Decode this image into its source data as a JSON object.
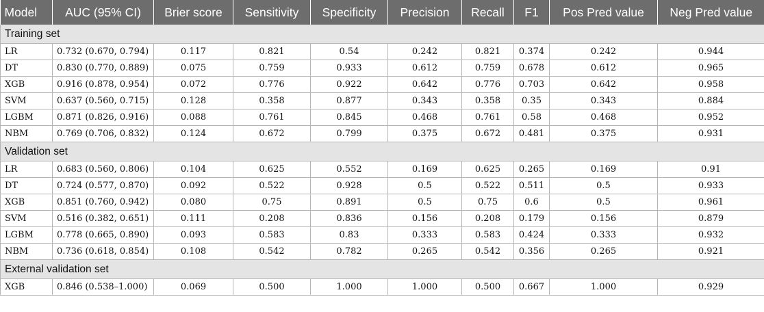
{
  "columns": [
    "Model",
    "AUC (95% CI)",
    "Brier score",
    "Sensitivity",
    "Specificity",
    "Precision",
    "Recall",
    "F1",
    "Pos Pred value",
    "Neg Pred value"
  ],
  "sections": [
    {
      "title": "Training set",
      "rows": [
        [
          "LR",
          "0.732 (0.670, 0.794)",
          "0.117",
          "0.821",
          "0.54",
          "0.242",
          "0.821",
          "0.374",
          "0.242",
          "0.944"
        ],
        [
          "DT",
          "0.830 (0.770, 0.889)",
          "0.075",
          "0.759",
          "0.933",
          "0.612",
          "0.759",
          "0.678",
          "0.612",
          "0.965"
        ],
        [
          "XGB",
          "0.916 (0.878, 0.954)",
          "0.072",
          "0.776",
          "0.922",
          "0.642",
          "0.776",
          "0.703",
          "0.642",
          "0.958"
        ],
        [
          "SVM",
          "0.637 (0.560, 0.715)",
          "0.128",
          "0.358",
          "0.877",
          "0.343",
          "0.358",
          "0.35",
          "0.343",
          "0.884"
        ],
        [
          "LGBM",
          "0.871 (0.826, 0.916)",
          "0.088",
          "0.761",
          "0.845",
          "0.468",
          "0.761",
          "0.58",
          "0.468",
          "0.952"
        ],
        [
          "NBM",
          "0.769 (0.706, 0.832)",
          "0.124",
          "0.672",
          "0.799",
          "0.375",
          "0.672",
          "0.481",
          "0.375",
          "0.931"
        ]
      ]
    },
    {
      "title": "Validation set",
      "rows": [
        [
          "LR",
          "0.683 (0.560, 0.806)",
          "0.104",
          "0.625",
          "0.552",
          "0.169",
          "0.625",
          "0.265",
          "0.169",
          "0.91"
        ],
        [
          "DT",
          "0.724 (0.577, 0.870)",
          "0.092",
          "0.522",
          "0.928",
          "0.5",
          "0.522",
          "0.511",
          "0.5",
          "0.933"
        ],
        [
          "XGB",
          "0.851 (0.760, 0.942)",
          "0.080",
          "0.75",
          "0.891",
          "0.5",
          "0.75",
          "0.6",
          "0.5",
          "0.961"
        ],
        [
          "SVM",
          "0.516 (0.382, 0.651)",
          "0.111",
          "0.208",
          "0.836",
          "0.156",
          "0.208",
          "0.179",
          "0.156",
          "0.879"
        ],
        [
          "LGBM",
          "0.778 (0.665, 0.890)",
          "0.093",
          "0.583",
          "0.83",
          "0.333",
          "0.583",
          "0.424",
          "0.333",
          "0.932"
        ],
        [
          "NBM",
          "0.736 (0.618, 0.854)",
          "0.108",
          "0.542",
          "0.782",
          "0.265",
          "0.542",
          "0.356",
          "0.265",
          "0.921"
        ]
      ]
    },
    {
      "title": "External validation set",
      "rows": [
        [
          "XGB",
          "0.846 (0.538–1.000)",
          "0.069",
          "0.500",
          "1.000",
          "1.000",
          "0.500",
          "0.667",
          "1.000",
          "0.929"
        ]
      ]
    }
  ]
}
